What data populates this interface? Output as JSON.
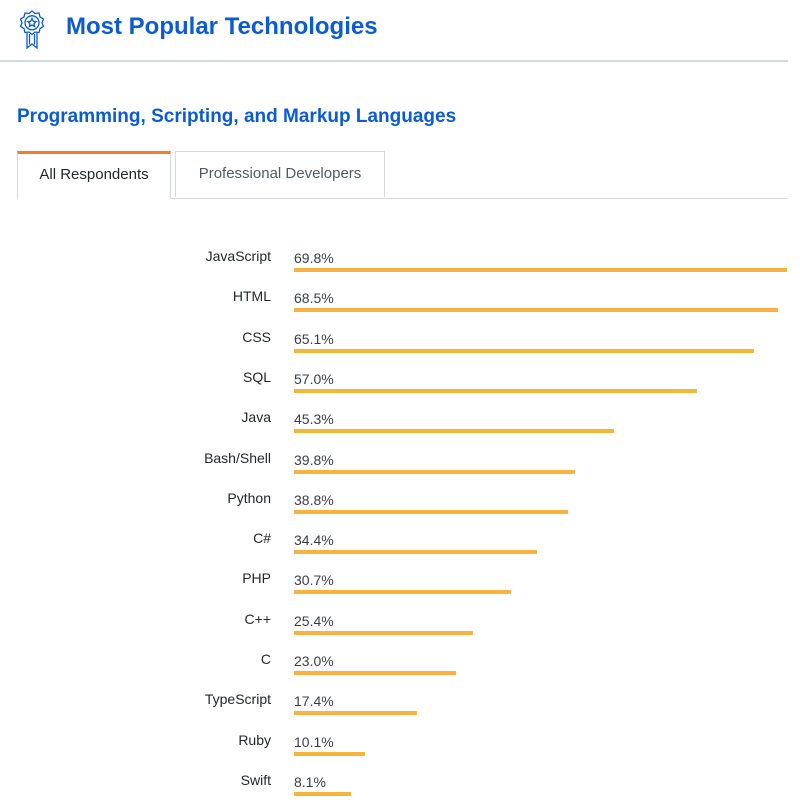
{
  "header": {
    "title": "Most Popular Technologies",
    "icon": "award-ribbon-icon"
  },
  "section": {
    "title": "Programming, Scripting, and Markup Languages"
  },
  "tabs": [
    {
      "label": "All Respondents",
      "active": true
    },
    {
      "label": "Professional Developers",
      "active": false
    }
  ],
  "colors": {
    "accent": "#f48024",
    "title": "#0c5bd1",
    "bar": "#f8b33e"
  },
  "chart_data": {
    "type": "bar",
    "orientation": "horizontal",
    "title": "Programming, Scripting, and Markup Languages",
    "xlabel": "",
    "ylabel": "",
    "unit": "%",
    "categories": [
      "JavaScript",
      "HTML",
      "CSS",
      "SQL",
      "Java",
      "Bash/Shell",
      "Python",
      "C#",
      "PHP",
      "C++",
      "C",
      "TypeScript",
      "Ruby",
      "Swift"
    ],
    "values": [
      69.8,
      68.5,
      65.1,
      57.0,
      45.3,
      39.8,
      38.8,
      34.4,
      30.7,
      25.4,
      23.0,
      17.4,
      10.1,
      8.1
    ],
    "labels": [
      "69.8%",
      "68.5%",
      "65.1%",
      "57.0%",
      "45.3%",
      "39.8%",
      "38.8%",
      "34.4%",
      "30.7%",
      "25.4%",
      "23.0%",
      "17.4%",
      "10.1%",
      "8.1%"
    ],
    "xlim": [
      0,
      69.8
    ],
    "grid": false,
    "legend": "none"
  }
}
